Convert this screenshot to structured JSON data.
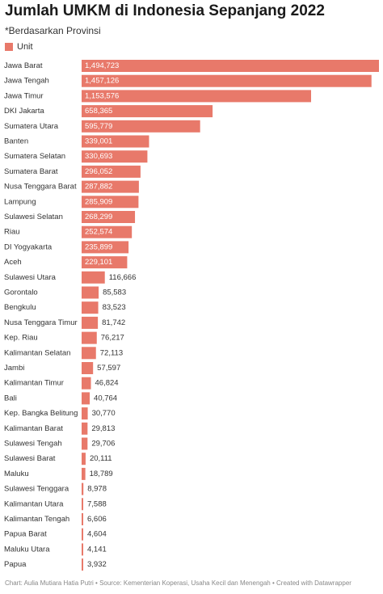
{
  "title": "Jumlah UMKM di Indonesia Sepanjang 2022",
  "subtitle": "*Berdasarkan Provinsi",
  "legend_label": "Unit",
  "footer": "Chart: Aulia Mutiara Hatia Putri • Source: Kementerian Koperasi, Usaha Kecil dan Menengah • Created with Datawrapper",
  "colors": {
    "bar": "#e8796a",
    "bar_text": "#ffffff",
    "label_text": "#333333"
  },
  "chart_data": {
    "type": "bar",
    "orientation": "horizontal",
    "title": "Jumlah UMKM di Indonesia Sepanjang 2022",
    "subtitle": "*Berdasarkan Provinsi",
    "legend": [
      "Unit"
    ],
    "categories": [
      "Jawa Barat",
      "Jawa Tengah",
      "Jawa Timur",
      "DKI Jakarta",
      "Sumatera Utara",
      "Banten",
      "Sumatera Selatan",
      "Sumatera Barat",
      "Nusa Tenggara Barat",
      "Lampung",
      "Sulawesi Selatan",
      "Riau",
      "DI Yogyakarta",
      "Aceh",
      "Sulawesi Utara",
      "Gorontalo",
      "Bengkulu",
      "Nusa Tenggara Timur",
      "Kep. Riau",
      "Kalimantan Selatan",
      "Jambi",
      "Kalimantan Timur",
      "Bali",
      "Kep. Bangka Belitung",
      "Kalimantan Barat",
      "Sulawesi Tengah",
      "Sulawesi Barat",
      "Maluku",
      "Sulawesi Tenggara",
      "Kalimantan Utara",
      "Kalimantan Tengah",
      "Papua Barat",
      "Maluku Utara",
      "Papua"
    ],
    "values": [
      1494723,
      1457126,
      1153576,
      658365,
      595779,
      339001,
      330693,
      296052,
      287882,
      285909,
      268299,
      252574,
      235899,
      229101,
      116666,
      85583,
      83523,
      81742,
      76217,
      72113,
      57597,
      46824,
      40764,
      30770,
      29813,
      29706,
      20111,
      18789,
      8978,
      7588,
      6606,
      4604,
      4141,
      3932
    ],
    "labels": [
      "1,494,723",
      "1,457,126",
      "1,153,576",
      "658,365",
      "595,779",
      "339,001",
      "330,693",
      "296,052",
      "287,882",
      "285,909",
      "268,299",
      "252,574",
      "235,899",
      "229,101",
      "116,666",
      "85,583",
      "83,523",
      "81,742",
      "76,217",
      "72,113",
      "57,597",
      "46,824",
      "40,764",
      "30,770",
      "29,813",
      "29,706",
      "20,111",
      "18,789",
      "8,978",
      "7,588",
      "6,606",
      "4,604",
      "4,141",
      "3,932"
    ],
    "xlim": [
      0,
      1494723
    ],
    "grid": false
  }
}
